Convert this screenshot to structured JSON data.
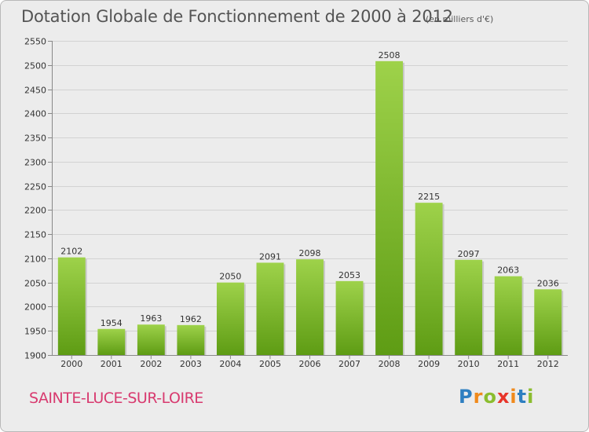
{
  "header": {
    "title": "Dotation Globale de Fonctionnement de 2000 à 2012",
    "unit_note": "(en milliers d'€)"
  },
  "footer": {
    "commune": "SAINTE-LUCE-SUR-LOIRE",
    "brand_letters": [
      "P",
      "r",
      "o",
      "x",
      "i",
      "t",
      "i"
    ],
    "brand_colors": [
      "#2e7fc1",
      "#f08a1c",
      "#8bbd2f",
      "#e8352a",
      "#f08a1c",
      "#2e7fc1",
      "#8bbd2f"
    ]
  },
  "chart_data": {
    "type": "bar",
    "categories": [
      "2000",
      "2001",
      "2002",
      "2003",
      "2004",
      "2005",
      "2006",
      "2007",
      "2008",
      "2009",
      "2010",
      "2011",
      "2012"
    ],
    "values": [
      2102,
      1954,
      1963,
      1962,
      2050,
      2091,
      2098,
      2053,
      2508,
      2215,
      2097,
      2063,
      2036
    ],
    "ylim": [
      1900,
      2550
    ],
    "yticks": [
      1900,
      1950,
      2000,
      2050,
      2100,
      2150,
      2200,
      2250,
      2300,
      2350,
      2400,
      2450,
      2500,
      2550
    ],
    "grid": true,
    "bar_color_light": "#9ed24a",
    "bar_color_dark": "#5e9c14"
  }
}
